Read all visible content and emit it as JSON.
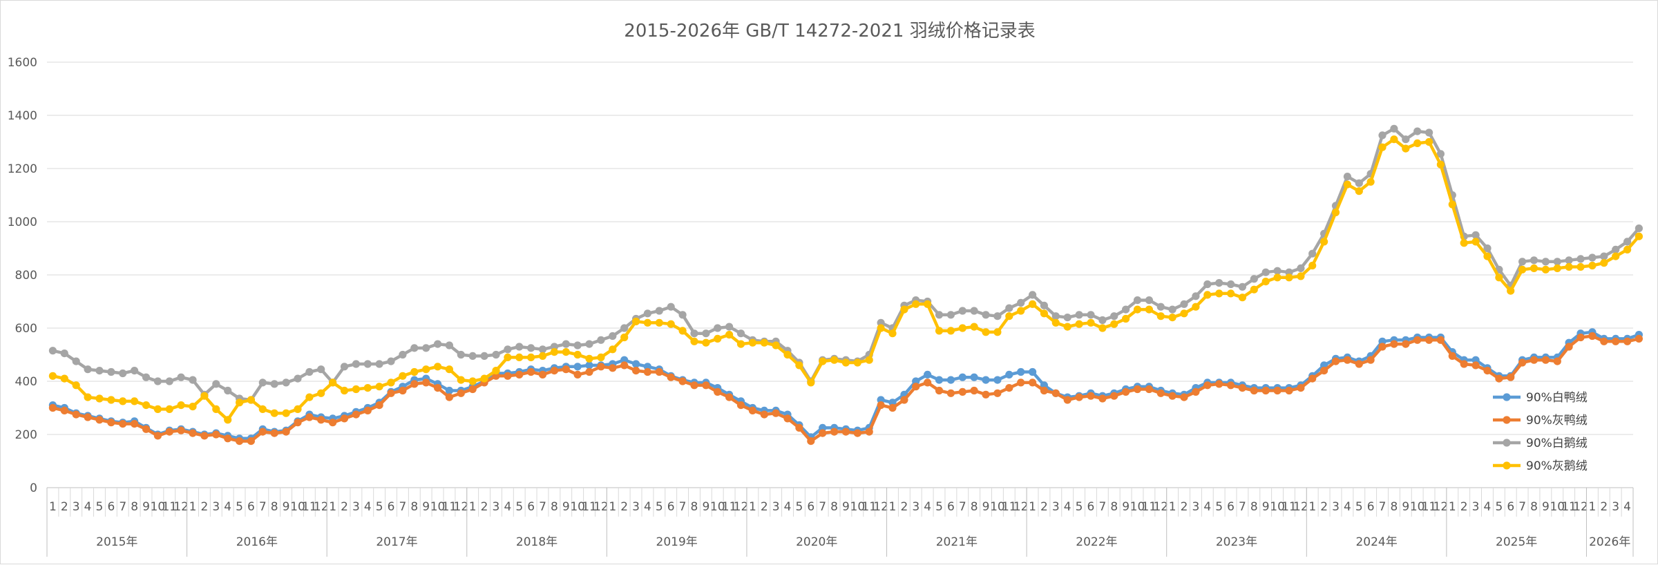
{
  "chart_data": {
    "type": "line",
    "title": "2015-2026年 GB/T 14272-2021 羽绒价格记录表",
    "ylim": [
      0,
      1600
    ],
    "yticks": [
      0,
      200,
      400,
      600,
      800,
      1000,
      1200,
      1400,
      1600
    ],
    "grid": true,
    "legend_position": "right",
    "x_month_ticks": [
      "1",
      "2",
      "3",
      "4",
      "5",
      "6",
      "7",
      "8",
      "9",
      "10",
      "11",
      "12"
    ],
    "year_groups": [
      {
        "label": "2015年",
        "months": 12
      },
      {
        "label": "2016年",
        "months": 12
      },
      {
        "label": "2017年",
        "months": 12
      },
      {
        "label": "2018年",
        "months": 12
      },
      {
        "label": "2019年",
        "months": 12
      },
      {
        "label": "2020年",
        "months": 12
      },
      {
        "label": "2021年",
        "months": 12
      },
      {
        "label": "2022年",
        "months": 12
      },
      {
        "label": "2023年",
        "months": 12
      },
      {
        "label": "2024年",
        "months": 12
      },
      {
        "label": "2025年",
        "months": 12
      },
      {
        "label": "2026年",
        "months": 4
      }
    ],
    "series": [
      {
        "name": "90%白鸭绒",
        "color": "#5B9BD5",
        "values": [
          310,
          300,
          280,
          270,
          260,
          250,
          245,
          250,
          225,
          200,
          215,
          220,
          210,
          200,
          205,
          195,
          185,
          185,
          220,
          210,
          215,
          250,
          275,
          265,
          260,
          270,
          285,
          300,
          320,
          360,
          380,
          405,
          410,
          390,
          365,
          365,
          380,
          400,
          430,
          430,
          435,
          445,
          440,
          450,
          455,
          455,
          460,
          460,
          465,
          480,
          465,
          455,
          445,
          420,
          405,
          395,
          395,
          375,
          350,
          325,
          300,
          290,
          290,
          275,
          235,
          190,
          225,
          225,
          220,
          215,
          225,
          330,
          320,
          350,
          400,
          425,
          405,
          405,
          415,
          415,
          405,
          405,
          425,
          435,
          435,
          385,
          355,
          340,
          345,
          355,
          345,
          355,
          370,
          380,
          380,
          365,
          355,
          350,
          375,
          395,
          395,
          395,
          385,
          375,
          375,
          375,
          375,
          385,
          420,
          460,
          485,
          490,
          475,
          495,
          550,
          555,
          555,
          565,
          565,
          565,
          510,
          480,
          480,
          450,
          420,
          420,
          480,
          490,
          490,
          490,
          545,
          580,
          585,
          560,
          560,
          560,
          575
        ]
      },
      {
        "name": "90%灰鸭绒",
        "color": "#ED7D31",
        "values": [
          300,
          290,
          275,
          265,
          255,
          245,
          240,
          240,
          220,
          195,
          210,
          215,
          205,
          195,
          200,
          185,
          175,
          175,
          210,
          205,
          210,
          245,
          265,
          255,
          245,
          260,
          275,
          290,
          310,
          355,
          365,
          390,
          395,
          375,
          340,
          355,
          370,
          395,
          420,
          420,
          425,
          435,
          425,
          440,
          445,
          425,
          435,
          455,
          450,
          460,
          440,
          435,
          435,
          415,
          400,
          385,
          385,
          360,
          340,
          310,
          290,
          275,
          280,
          260,
          225,
          175,
          205,
          210,
          210,
          205,
          210,
          310,
          300,
          330,
          380,
          395,
          365,
          355,
          360,
          365,
          350,
          355,
          375,
          395,
          395,
          365,
          355,
          330,
          340,
          345,
          335,
          345,
          360,
          370,
          370,
          355,
          345,
          340,
          360,
          385,
          390,
          385,
          375,
          365,
          365,
          365,
          365,
          375,
          410,
          440,
          475,
          480,
          465,
          480,
          530,
          540,
          540,
          555,
          555,
          555,
          495,
          465,
          460,
          440,
          410,
          415,
          470,
          480,
          480,
          475,
          530,
          565,
          570,
          550,
          550,
          550,
          560
        ]
      },
      {
        "name": "90%白鹅绒",
        "color": "#A5A5A5",
        "values": [
          515,
          505,
          475,
          445,
          440,
          435,
          430,
          440,
          415,
          400,
          400,
          415,
          405,
          350,
          390,
          365,
          335,
          330,
          395,
          390,
          395,
          410,
          435,
          445,
          395,
          455,
          465,
          465,
          465,
          475,
          500,
          525,
          525,
          540,
          535,
          500,
          495,
          495,
          500,
          520,
          530,
          525,
          520,
          530,
          540,
          535,
          540,
          555,
          570,
          600,
          635,
          655,
          665,
          680,
          650,
          580,
          580,
          600,
          605,
          580,
          555,
          550,
          550,
          515,
          470,
          400,
          480,
          485,
          480,
          475,
          500,
          620,
          600,
          685,
          705,
          700,
          650,
          650,
          665,
          665,
          650,
          645,
          675,
          695,
          725,
          685,
          645,
          640,
          650,
          650,
          630,
          645,
          670,
          705,
          705,
          680,
          670,
          690,
          720,
          765,
          770,
          765,
          755,
          785,
          810,
          815,
          810,
          825,
          880,
          955,
          1060,
          1170,
          1145,
          1180,
          1325,
          1350,
          1310,
          1340,
          1335,
          1255,
          1100,
          945,
          950,
          900,
          820,
          760,
          850,
          855,
          850,
          850,
          855,
          860,
          865,
          870,
          895,
          925,
          975
        ]
      },
      {
        "name": "90%灰鹅绒",
        "color": "#FFC000",
        "values": [
          420,
          410,
          385,
          340,
          335,
          330,
          325,
          325,
          310,
          295,
          295,
          310,
          305,
          345,
          295,
          255,
          320,
          330,
          295,
          280,
          280,
          295,
          340,
          355,
          395,
          365,
          370,
          375,
          380,
          395,
          420,
          435,
          445,
          455,
          445,
          405,
          400,
          410,
          440,
          490,
          490,
          490,
          495,
          510,
          510,
          500,
          485,
          490,
          520,
          565,
          625,
          620,
          620,
          615,
          590,
          550,
          545,
          560,
          575,
          540,
          545,
          545,
          535,
          500,
          460,
          395,
          475,
          480,
          470,
          470,
          480,
          600,
          580,
          670,
          690,
          690,
          590,
          590,
          600,
          605,
          585,
          585,
          645,
          665,
          690,
          655,
          620,
          605,
          615,
          620,
          600,
          615,
          635,
          670,
          670,
          645,
          640,
          655,
          680,
          725,
          730,
          730,
          715,
          745,
          775,
          790,
          790,
          795,
          835,
          925,
          1035,
          1140,
          1115,
          1150,
          1280,
          1310,
          1275,
          1295,
          1300,
          1215,
          1065,
          920,
          925,
          870,
          790,
          740,
          820,
          825,
          820,
          825,
          830,
          830,
          835,
          845,
          870,
          895,
          945
        ]
      }
    ]
  }
}
